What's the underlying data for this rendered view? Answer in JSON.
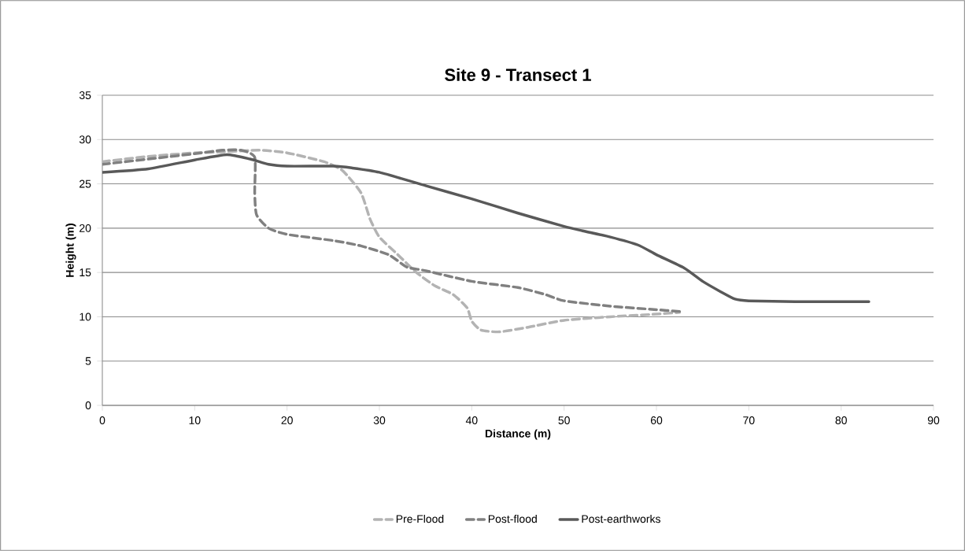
{
  "chart_data": {
    "type": "line",
    "title": "Site 9 - Transect 1",
    "xlabel": "Distance (m)",
    "ylabel": "Height (m)",
    "xlim": [
      0,
      90
    ],
    "xticks": [
      0,
      10,
      20,
      30,
      40,
      50,
      60,
      70,
      80,
      90
    ],
    "ylim": [
      0,
      35
    ],
    "yticks": [
      0,
      5,
      10,
      15,
      20,
      25,
      30,
      35
    ],
    "grid": "y",
    "legend": "bottom",
    "marker": "none",
    "series": [
      {
        "name": "Pre-Flood",
        "color": "#b3b3b3",
        "line_style": "dashed",
        "x": [
          0,
          5,
          10,
          13,
          17,
          20,
          24,
          26,
          28,
          29,
          30,
          32,
          34,
          36,
          38,
          39.5,
          40,
          41,
          43,
          46,
          50,
          55,
          60,
          62.5
        ],
        "values": [
          27.5,
          28.1,
          28.5,
          28.6,
          28.8,
          28.5,
          27.5,
          26.5,
          24,
          21,
          19,
          17,
          15,
          13.5,
          12.5,
          11,
          9.5,
          8.5,
          8.3,
          8.8,
          9.6,
          10,
          10.3,
          10.5
        ]
      },
      {
        "name": "Post-flood",
        "color": "#808080",
        "line_style": "dashed",
        "x": [
          0,
          5,
          10,
          13,
          15,
          16.5,
          16.5,
          16.7,
          18,
          20,
          25,
          28,
          31,
          33,
          35,
          40,
          45,
          48,
          50,
          55,
          60,
          62.5
        ],
        "values": [
          27.2,
          27.8,
          28.4,
          28.8,
          28.8,
          28,
          24,
          21.5,
          20,
          19.3,
          18.6,
          18,
          17,
          15.6,
          15.2,
          14,
          13.3,
          12.5,
          11.8,
          11.2,
          10.8,
          10.6
        ]
      },
      {
        "name": "Post-earthworks",
        "color": "#595959",
        "line_style": "solid",
        "x": [
          0,
          5,
          10,
          13.5,
          16,
          18,
          20,
          25,
          27,
          30,
          35,
          40,
          45,
          50,
          52,
          55,
          58,
          60,
          63,
          65,
          67,
          68.5,
          70,
          75,
          80,
          83
        ],
        "values": [
          26.3,
          26.7,
          27.7,
          28.3,
          27.8,
          27.2,
          27,
          27,
          26.8,
          26.3,
          24.8,
          23.3,
          21.7,
          20.2,
          19.7,
          19,
          18.1,
          17,
          15.5,
          14,
          12.8,
          12,
          11.8,
          11.7,
          11.7,
          11.7
        ]
      }
    ]
  }
}
